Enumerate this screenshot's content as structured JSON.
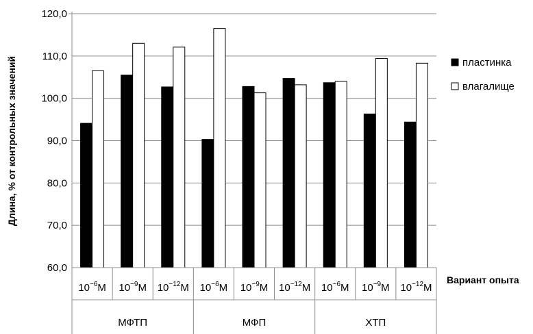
{
  "chart_data": {
    "type": "bar",
    "xlabel": "Вариант опыта",
    "ylabel": "Длина, % от контрольных значений",
    "ylim": [
      60,
      120
    ],
    "yticks": [
      "60,0",
      "70,0",
      "80,0",
      "90,0",
      "100,0",
      "110,0",
      "120,0"
    ],
    "grid": "horizontal",
    "legend_position": "right",
    "groups": [
      "МФТП",
      "МФП",
      "ХТП"
    ],
    "categories": [
      {
        "base": "10",
        "exp": "−6",
        "unit": "М"
      },
      {
        "base": "10",
        "exp": "−9",
        "unit": "М"
      },
      {
        "base": "10",
        "exp": "−12",
        "unit": "М"
      },
      {
        "base": "10",
        "exp": "−6",
        "unit": "М"
      },
      {
        "base": "10",
        "exp": "−9",
        "unit": "М"
      },
      {
        "base": "10",
        "exp": "−12",
        "unit": "М"
      },
      {
        "base": "10",
        "exp": "−6",
        "unit": "М"
      },
      {
        "base": "10",
        "exp": "−9",
        "unit": "М"
      },
      {
        "base": "10",
        "exp": "−12",
        "unit": "М"
      }
    ],
    "series": [
      {
        "name": "пластинка",
        "color": "#000000",
        "values": [
          94.1,
          105.5,
          102.7,
          90.3,
          102.8,
          104.7,
          103.7,
          96.3,
          94.4
        ]
      },
      {
        "name": "влагалище",
        "color": "#ffffff",
        "values": [
          106.5,
          113.0,
          112.1,
          116.5,
          101.3,
          103.2,
          104.0,
          109.4,
          108.3
        ]
      }
    ]
  }
}
